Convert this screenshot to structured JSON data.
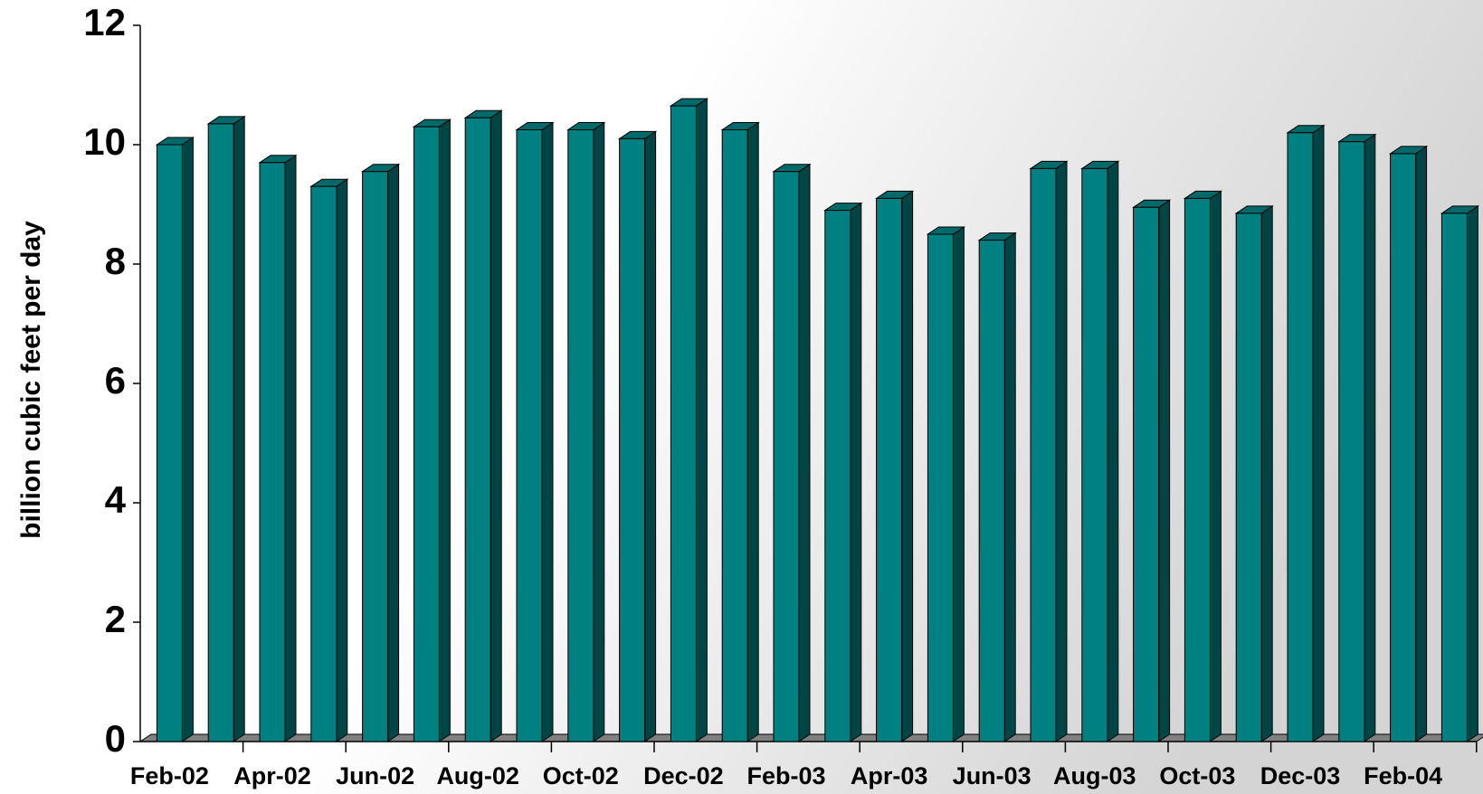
{
  "chart_data": {
    "type": "bar3d",
    "y_label": "billion cubic feet per day",
    "categories": [
      "Feb-02",
      null,
      "Apr-02",
      null,
      "Jun-02",
      null,
      "Aug-02",
      null,
      "Oct-02",
      null,
      "Dec-02",
      null,
      "Feb-03",
      null,
      "Apr-03",
      null,
      "Jun-03",
      null,
      "Aug-03",
      null,
      "Oct-03",
      null,
      "Dec-03",
      null,
      "Feb-04",
      null
    ],
    "values": [
      10.0,
      10.35,
      9.7,
      9.3,
      9.55,
      10.3,
      10.45,
      10.25,
      10.25,
      10.1,
      10.65,
      10.25,
      9.55,
      8.9,
      9.1,
      8.5,
      8.4,
      9.6,
      9.6,
      8.95,
      9.1,
      8.85,
      10.2,
      10.05,
      9.85,
      8.85
    ],
    "color": "#008080",
    "ylim": [
      0,
      12
    ],
    "yticks": [
      0,
      2,
      4,
      6,
      8,
      10,
      12
    ],
    "grid": false
  }
}
